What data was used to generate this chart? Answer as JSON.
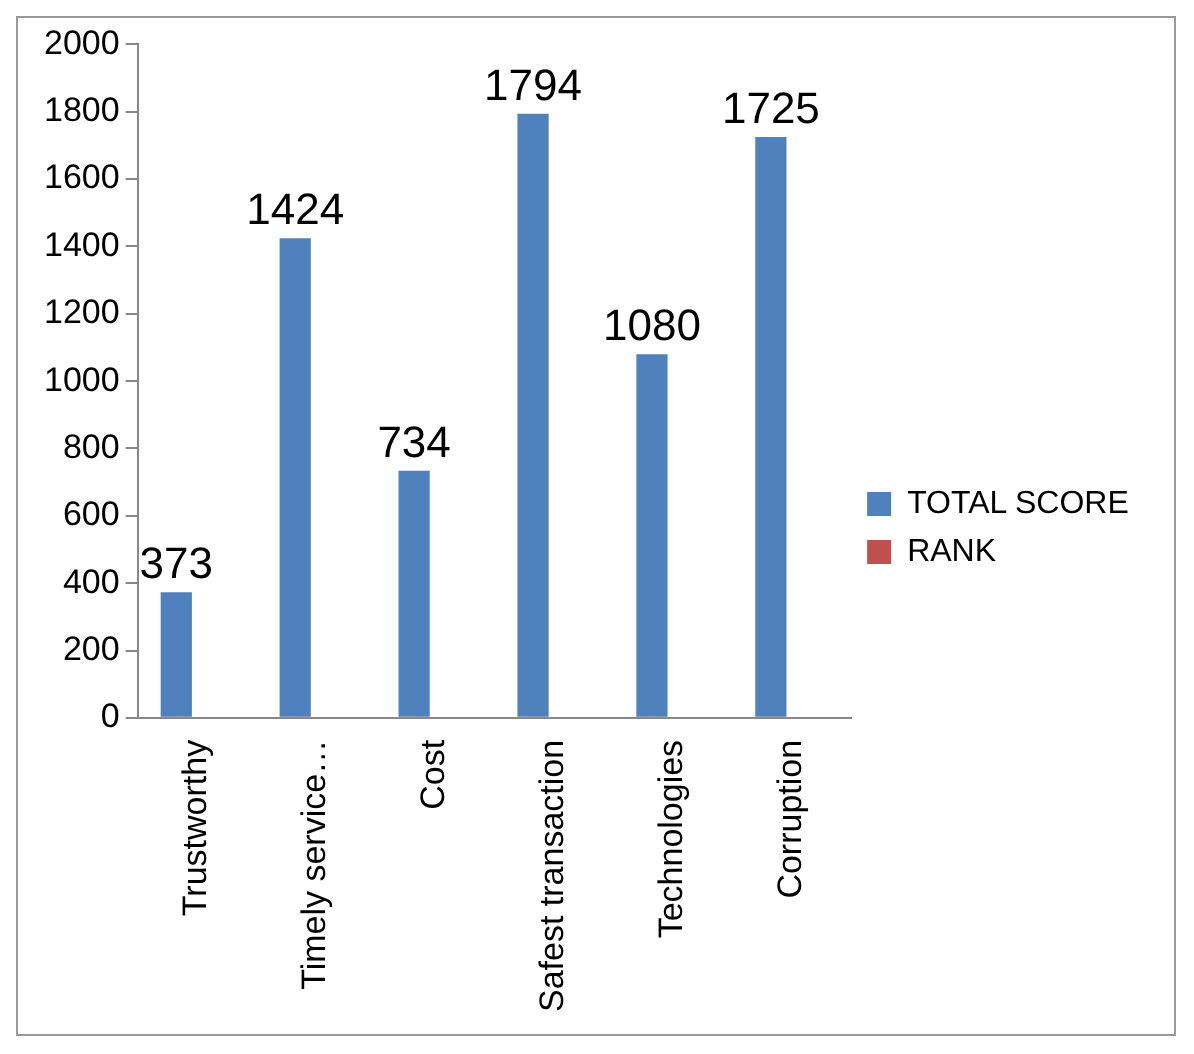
{
  "chart_data": {
    "type": "bar",
    "categories": [
      "Trustworthy",
      "Timely service…",
      "Cost",
      "Safest transaction",
      "Technologies",
      "Corruption"
    ],
    "series": [
      {
        "name": "TOTAL SCORE",
        "color": "#4f81bd",
        "values": [
          373,
          1424,
          734,
          1794,
          1080,
          1725
        ]
      },
      {
        "name": "RANK",
        "color": "#c0504d",
        "values": [
          null,
          null,
          null,
          null,
          null,
          null
        ]
      }
    ],
    "ylim": [
      0,
      2000
    ],
    "yticks": [
      0,
      200,
      400,
      600,
      800,
      1000,
      1200,
      1400,
      1600,
      1800,
      2000
    ],
    "grid": false,
    "legend": "right",
    "data_labels": true
  }
}
